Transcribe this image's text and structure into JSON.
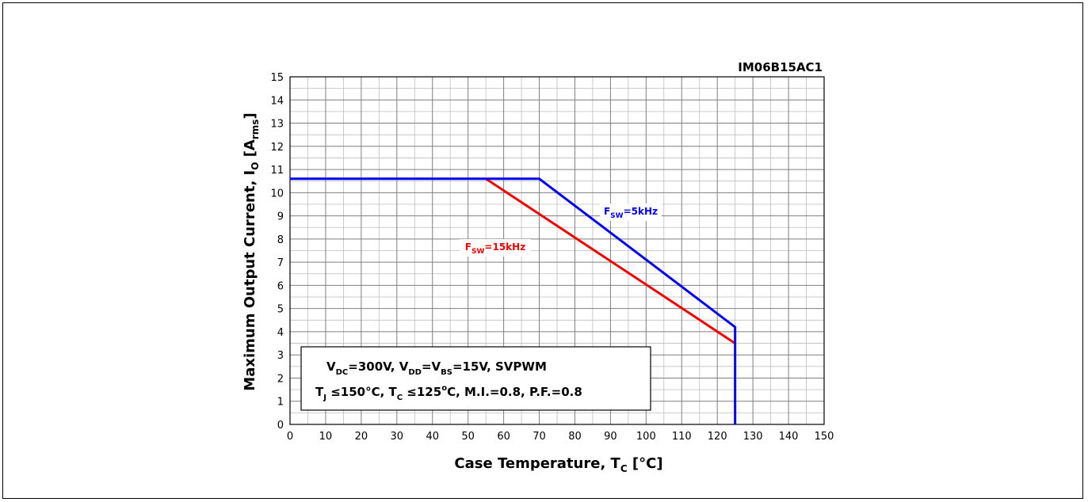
{
  "chart_data": {
    "type": "line",
    "title": "IM06B15AC1",
    "xlabel": "Case Temperature, T",
    "xlabel_sub": "C",
    "xlabel_unit": " [°C]",
    "ylabel": "Maximum Output Current, I",
    "ylabel_sub": "O",
    "ylabel_unit_open": " [A",
    "ylabel_unit_sub": "rms",
    "ylabel_unit_close": "]",
    "xlim": [
      0,
      150
    ],
    "ylim": [
      0,
      15
    ],
    "x_ticks": [
      0,
      10,
      20,
      30,
      40,
      50,
      60,
      70,
      80,
      90,
      100,
      110,
      120,
      130,
      140,
      150
    ],
    "y_ticks": [
      0,
      1,
      2,
      3,
      4,
      5,
      6,
      7,
      8,
      9,
      10,
      11,
      12,
      13,
      14,
      15
    ],
    "grid": true,
    "series": [
      {
        "label_main": "F",
        "label_sub": "SW",
        "label_rest": "=5kHz",
        "color": "#0000ee",
        "points": [
          [
            0,
            10.6
          ],
          [
            70,
            10.6
          ],
          [
            125,
            4.2
          ],
          [
            125,
            0
          ]
        ]
      },
      {
        "label_main": "F",
        "label_sub": "SW",
        "label_rest": "=15kHz",
        "color": "#ee0000",
        "points": [
          [
            55,
            10.6
          ],
          [
            125,
            3.5
          ]
        ]
      }
    ],
    "conditions": {
      "line1": [
        {
          "t": "V"
        },
        {
          "t": "DC",
          "sub": true
        },
        {
          "t": "=300V, V"
        },
        {
          "t": "DD",
          "sub": true
        },
        {
          "t": "=V"
        },
        {
          "t": "BS",
          "sub": true
        },
        {
          "t": "=15V, SVPWM"
        }
      ],
      "line2": [
        {
          "t": "T"
        },
        {
          "t": "J",
          "sub": true
        },
        {
          "t": " ≤150°C, T"
        },
        {
          "t": "C",
          "sub": true
        },
        {
          "t": " ≤125"
        },
        {
          "t": "o",
          "sup": true
        },
        {
          "t": "C, M.I.=0.8, P.F.=0.8"
        }
      ]
    }
  }
}
